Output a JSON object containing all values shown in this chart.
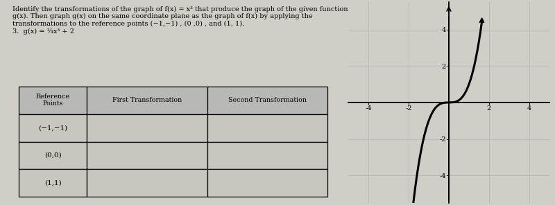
{
  "table_headers": [
    "Reference\nPoints",
    "First Transformation",
    "Second Transformation"
  ],
  "table_rows": [
    [
      "(−1,−1)",
      "",
      ""
    ],
    [
      "(0,0)",
      "",
      ""
    ],
    [
      "(1,1)",
      "",
      ""
    ]
  ],
  "graph_xlim": [
    -5,
    5
  ],
  "graph_ylim": [
    -5.5,
    5.5
  ],
  "graph_xticks": [
    -4,
    -2,
    0,
    2,
    4
  ],
  "graph_yticks": [
    -4,
    -2,
    0,
    2,
    4
  ],
  "curve_color": "#000000",
  "grid_color": "#bbbbbb",
  "background_color": "#d0cec6",
  "header_bg": "#b8b8b4",
  "cell_bg": "#c8c6be"
}
